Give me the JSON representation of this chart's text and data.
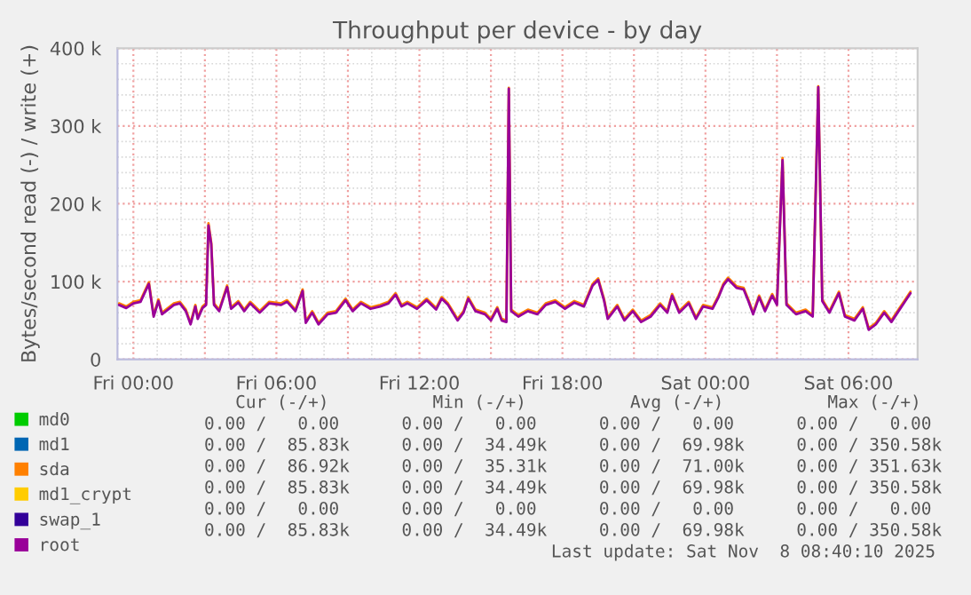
{
  "chart_data": {
    "type": "line",
    "title": "Throughput per device - by day",
    "ylabel": "Bytes/second read (-) / write (+)",
    "x": [
      "2025-11-06T23:24",
      "2025-11-06T23:42",
      "2025-11-07T00:00",
      "2025-11-07T00:18",
      "2025-11-07T00:39",
      "2025-11-07T00:51",
      "2025-11-07T01:03",
      "2025-11-07T01:12",
      "2025-11-07T01:42",
      "2025-11-07T01:57",
      "2025-11-07T02:12",
      "2025-11-07T02:24",
      "2025-11-07T02:36",
      "2025-11-07T02:42",
      "2025-11-07T02:54",
      "2025-11-07T03:03",
      "2025-11-07T03:09",
      "2025-11-07T03:16",
      "2025-11-07T03:23",
      "2025-11-07T03:36",
      "2025-11-07T03:56",
      "2025-11-07T04:06",
      "2025-11-07T04:24",
      "2025-11-07T04:39",
      "2025-11-07T04:54",
      "2025-11-07T05:18",
      "2025-11-07T05:42",
      "2025-11-07T06:12",
      "2025-11-07T06:27",
      "2025-11-07T06:48",
      "2025-11-07T07:06",
      "2025-11-07T07:14",
      "2025-11-07T07:30",
      "2025-11-07T07:46",
      "2025-11-07T08:09",
      "2025-11-07T08:30",
      "2025-11-07T08:54",
      "2025-11-07T09:12",
      "2025-11-07T09:33",
      "2025-11-07T09:57",
      "2025-11-07T10:21",
      "2025-11-07T10:42",
      "2025-11-07T11:00",
      "2025-11-07T11:15",
      "2025-11-07T11:30",
      "2025-11-07T11:54",
      "2025-11-07T12:18",
      "2025-11-07T12:42",
      "2025-11-07T12:56",
      "2025-11-07T13:12",
      "2025-11-07T13:36",
      "2025-11-07T13:51",
      "2025-11-07T14:03",
      "2025-11-07T14:21",
      "2025-11-07T14:45",
      "2025-11-07T15:00",
      "2025-11-07T15:16",
      "2025-11-07T15:27",
      "2025-11-07T15:39",
      "2025-11-07T15:45",
      "2025-11-07T15:51",
      "2025-11-07T16:09",
      "2025-11-07T16:33",
      "2025-11-07T16:57",
      "2025-11-07T17:18",
      "2025-11-07T17:42",
      "2025-11-07T18:06",
      "2025-11-07T18:30",
      "2025-11-07T18:54",
      "2025-11-07T19:16",
      "2025-11-07T19:30",
      "2025-11-07T19:45",
      "2025-11-07T19:54",
      "2025-11-07T20:18",
      "2025-11-07T20:36",
      "2025-11-07T20:57",
      "2025-11-07T21:18",
      "2025-11-07T21:42",
      "2025-11-07T22:06",
      "2025-11-07T22:24",
      "2025-11-07T22:36",
      "2025-11-07T22:54",
      "2025-11-07T23:18",
      "2025-11-07T23:36",
      "2025-11-07T23:54",
      "2025-11-08T00:18",
      "2025-11-08T00:33",
      "2025-11-08T00:45",
      "2025-11-08T00:57",
      "2025-11-08T01:18",
      "2025-11-08T01:36",
      "2025-11-08T01:48",
      "2025-11-08T02:00",
      "2025-11-08T02:15",
      "2025-11-08T02:30",
      "2025-11-08T02:48",
      "2025-11-08T03:00",
      "2025-11-08T03:14",
      "2025-11-08T03:24",
      "2025-11-08T03:48",
      "2025-11-08T04:12",
      "2025-11-08T04:30",
      "2025-11-08T04:44",
      "2025-11-08T04:54",
      "2025-11-08T05:12",
      "2025-11-08T05:36",
      "2025-11-08T05:51",
      "2025-11-08T06:15",
      "2025-11-08T06:36",
      "2025-11-08T06:51",
      "2025-11-08T07:09",
      "2025-11-08T07:30",
      "2025-11-08T07:48",
      "2025-11-08T08:06",
      "2025-11-08T08:36"
    ],
    "series": [
      {
        "name": "md0",
        "color": "#00cc00",
        "values": [
          null,
          null,
          null,
          null,
          null,
          null,
          null,
          null,
          null,
          null,
          null,
          null,
          null,
          null,
          null,
          null,
          null,
          null,
          null,
          null,
          null,
          null,
          null,
          null,
          null,
          null,
          null,
          null,
          null,
          null,
          null,
          null,
          null,
          null,
          null,
          null,
          null,
          null,
          null,
          null,
          null,
          null,
          null,
          null,
          null,
          null,
          null,
          null,
          null,
          null,
          null,
          null,
          null,
          null,
          null,
          null,
          null,
          null,
          null,
          null,
          null,
          null,
          null,
          null,
          null,
          null,
          null,
          null,
          null,
          null,
          null,
          null,
          null,
          null,
          null,
          null,
          null,
          null,
          null,
          null,
          null,
          null,
          null,
          null,
          null,
          null,
          null,
          null,
          null,
          null,
          null,
          null,
          null,
          null,
          null,
          null,
          null,
          null,
          null,
          null,
          null,
          null,
          null,
          null,
          null,
          null,
          null,
          null,
          null,
          null,
          null,
          null,
          null,
          null,
          null
        ]
      },
      {
        "name": "md1",
        "color": "#0066b3",
        "values": [
          null,
          null,
          null,
          null,
          null,
          null,
          null,
          null,
          null,
          null,
          null,
          null,
          null,
          null,
          null,
          null,
          null,
          null,
          null,
          null,
          null,
          null,
          null,
          null,
          null,
          null,
          null,
          null,
          null,
          null,
          null,
          null,
          null,
          null,
          null,
          null,
          null,
          null,
          null,
          null,
          null,
          null,
          null,
          null,
          null,
          null,
          null,
          null,
          null,
          null,
          null,
          null,
          null,
          null,
          null,
          null,
          null,
          null,
          null,
          null,
          null,
          null,
          null,
          null,
          null,
          null,
          null,
          null,
          null,
          null,
          null,
          null,
          null,
          null,
          null,
          null,
          null,
          null,
          null,
          null,
          null,
          null,
          null,
          null,
          null,
          null,
          null,
          null,
          null,
          null,
          null,
          null,
          null,
          null,
          null,
          null,
          null,
          null,
          null,
          null,
          null,
          null,
          null,
          null,
          null,
          null,
          null,
          null,
          null,
          null,
          null,
          null,
          null,
          null,
          null
        ]
      },
      {
        "name": "sda",
        "color": "#ff8000",
        "values": [
          72000,
          68000,
          74000,
          76000,
          99000,
          57000,
          77000,
          60000,
          72000,
          74000,
          64000,
          47000,
          70000,
          54000,
          68000,
          72000,
          175000,
          150000,
          72000,
          64000,
          95000,
          67000,
          75000,
          64000,
          74000,
          62000,
          74000,
          72000,
          76000,
          64000,
          90000,
          49000,
          62000,
          47000,
          60000,
          62000,
          78000,
          64000,
          74000,
          67000,
          70000,
          74000,
          85000,
          70000,
          74000,
          67000,
          78000,
          66000,
          80000,
          72000,
          52000,
          62000,
          80000,
          64000,
          60000,
          52000,
          67000,
          52000,
          50000,
          349000,
          64000,
          57000,
          64000,
          60000,
          72000,
          76000,
          67000,
          75000,
          70000,
          97000,
          104000,
          77000,
          54000,
          70000,
          52000,
          64000,
          50000,
          57000,
          72000,
          62000,
          84000,
          62000,
          74000,
          54000,
          70000,
          67000,
          82000,
          97000,
          105000,
          94000,
          92000,
          77000,
          60000,
          82000,
          64000,
          84000,
          72000,
          259000,
          72000,
          60000,
          64000,
          57000,
          351000,
          77000,
          62000,
          87000,
          57000,
          52000,
          67000,
          40000,
          47000,
          62000,
          50000,
          64000,
          87000
        ]
      },
      {
        "name": "md1_crypt",
        "color": "#ffcc00",
        "values": [
          null,
          null,
          null,
          null,
          null,
          null,
          null,
          null,
          null,
          null,
          null,
          null,
          null,
          null,
          null,
          null,
          null,
          null,
          null,
          null,
          null,
          null,
          null,
          null,
          null,
          null,
          null,
          null,
          null,
          null,
          null,
          null,
          null,
          null,
          null,
          null,
          null,
          null,
          null,
          null,
          null,
          null,
          null,
          null,
          null,
          null,
          null,
          null,
          null,
          null,
          null,
          null,
          null,
          null,
          null,
          null,
          null,
          null,
          null,
          null,
          null,
          null,
          null,
          null,
          null,
          null,
          null,
          null,
          null,
          null,
          null,
          null,
          null,
          null,
          null,
          null,
          null,
          null,
          null,
          null,
          null,
          null,
          null,
          null,
          null,
          null,
          null,
          null,
          null,
          null,
          null,
          null,
          null,
          null,
          null,
          null,
          null,
          null,
          null,
          null,
          null,
          null,
          null,
          null,
          null,
          null,
          null,
          null,
          null,
          null,
          null,
          null,
          null,
          null,
          null
        ]
      },
      {
        "name": "swap_1",
        "color": "#330099",
        "values": [
          null,
          null,
          null,
          null,
          null,
          null,
          null,
          null,
          null,
          null,
          null,
          null,
          null,
          null,
          null,
          null,
          null,
          null,
          null,
          null,
          null,
          null,
          null,
          null,
          null,
          null,
          null,
          null,
          null,
          null,
          null,
          null,
          null,
          null,
          null,
          null,
          null,
          null,
          null,
          null,
          null,
          null,
          null,
          null,
          null,
          null,
          null,
          null,
          null,
          null,
          null,
          null,
          null,
          null,
          null,
          null,
          null,
          null,
          null,
          null,
          null,
          null,
          null,
          null,
          null,
          null,
          null,
          null,
          null,
          null,
          null,
          null,
          null,
          null,
          null,
          null,
          null,
          null,
          null,
          null,
          null,
          null,
          null,
          null,
          null,
          null,
          null,
          null,
          null,
          null,
          null,
          null,
          null,
          null,
          null,
          null,
          null,
          null,
          null,
          null,
          null,
          null,
          null,
          null,
          null,
          null,
          null,
          null,
          null,
          null,
          null,
          null,
          null,
          null,
          null
        ]
      },
      {
        "name": "root",
        "color": "#990099",
        "values": [
          70000,
          66000,
          72000,
          74000,
          97000,
          55000,
          75000,
          58000,
          70000,
          72000,
          62000,
          45000,
          68000,
          52000,
          66000,
          70000,
          172000,
          148000,
          70000,
          62000,
          93000,
          65000,
          73000,
          62000,
          72000,
          60000,
          72000,
          70000,
          74000,
          62000,
          88000,
          47000,
          60000,
          45000,
          58000,
          60000,
          76000,
          62000,
          72000,
          65000,
          68000,
          72000,
          83000,
          68000,
          72000,
          65000,
          76000,
          64000,
          78000,
          70000,
          50000,
          60000,
          78000,
          62000,
          58000,
          50000,
          65000,
          50000,
          48000,
          348000,
          62000,
          55000,
          62000,
          58000,
          70000,
          74000,
          65000,
          73000,
          68000,
          95000,
          102000,
          75000,
          52000,
          68000,
          50000,
          62000,
          48000,
          55000,
          70000,
          60000,
          82000,
          60000,
          72000,
          52000,
          68000,
          65000,
          80000,
          95000,
          103000,
          92000,
          90000,
          75000,
          58000,
          80000,
          62000,
          82000,
          70000,
          256000,
          70000,
          58000,
          62000,
          55000,
          350000,
          75000,
          60000,
          85000,
          55000,
          50000,
          65000,
          38000,
          45000,
          60000,
          48000,
          62000,
          85000
        ]
      }
    ],
    "xlim": [
      "2025-11-06T23:20",
      "2025-11-08T08:54"
    ],
    "xticks": [
      {
        "value": "2025-11-07T00:00",
        "label": "Fri 00:00"
      },
      {
        "value": "2025-11-07T03:00",
        "label": null
      },
      {
        "value": "2025-11-07T06:00",
        "label": "Fri 06:00"
      },
      {
        "value": "2025-11-07T09:00",
        "label": null
      },
      {
        "value": "2025-11-07T12:00",
        "label": "Fri 12:00"
      },
      {
        "value": "2025-11-07T15:00",
        "label": null
      },
      {
        "value": "2025-11-07T18:00",
        "label": "Fri 18:00"
      },
      {
        "value": "2025-11-07T21:00",
        "label": null
      },
      {
        "value": "2025-11-08T00:00",
        "label": "Sat 00:00"
      },
      {
        "value": "2025-11-08T03:00",
        "label": null
      },
      {
        "value": "2025-11-08T06:00",
        "label": "Sat 06:00"
      }
    ],
    "ylim": [
      0,
      400000
    ],
    "yticks": [
      {
        "value": 0,
        "label": "0"
      },
      {
        "value": 100000,
        "label": "100 k"
      },
      {
        "value": 200000,
        "label": "200 k"
      },
      {
        "value": 300000,
        "label": "300 k"
      },
      {
        "value": 400000,
        "label": "400 k"
      }
    ],
    "grid": true,
    "legend": "bottom left",
    "line_style": "solid",
    "annotations": [
      "   Cur (-/+)          Min (-/+)          Avg (-/+)          Max (-/+)",
      "0.00 /   0.00      0.00 /   0.00      0.00 /   0.00      0.00 /   0.00",
      "0.00 /  85.83k     0.00 /  34.49k     0.00 /  69.98k     0.00 / 350.58k",
      "0.00 /  86.92k     0.00 /  35.31k     0.00 /  71.00k     0.00 / 351.63k",
      "0.00 /  85.83k     0.00 /  34.49k     0.00 /  69.98k     0.00 / 350.58k",
      "0.00 /   0.00      0.00 /   0.00      0.00 /   0.00      0.00 /   0.00",
      "0.00 /  85.83k     0.00 /  34.49k     0.00 /  69.98k     0.00 / 350.58k",
      "Last update: Sat Nov  8 08:40:10 2025"
    ]
  }
}
